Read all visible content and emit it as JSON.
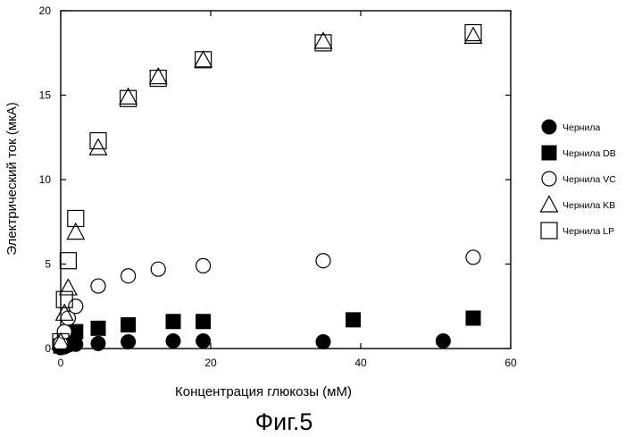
{
  "chart_data": {
    "type": "scatter",
    "title": "",
    "xlabel": "Концентрация глюкозы (мМ)",
    "ylabel": "Электрический ток (мкА)",
    "xlim": [
      0,
      60
    ],
    "ylim": [
      0,
      20
    ],
    "xticks": [
      0,
      20,
      40,
      60
    ],
    "yticks": [
      0,
      5,
      10,
      15,
      20
    ],
    "grid": false,
    "legend_position": "right",
    "series": [
      {
        "name": "Чернила",
        "marker": "filled-circle",
        "x": [
          0,
          0.5,
          1,
          2,
          5,
          9,
          15,
          19,
          35,
          51
        ],
        "y": [
          0.05,
          0.1,
          0.2,
          0.25,
          0.3,
          0.4,
          0.45,
          0.45,
          0.4,
          0.45
        ]
      },
      {
        "name": "Чернила DB",
        "marker": "filled-square",
        "x": [
          0,
          0.5,
          1,
          2,
          5,
          9,
          15,
          19,
          39,
          55
        ],
        "y": [
          0.15,
          0.5,
          0.8,
          1.0,
          1.2,
          1.4,
          1.6,
          1.6,
          1.7,
          1.8
        ]
      },
      {
        "name": "Чернила VC",
        "marker": "open-circle",
        "x": [
          0,
          0.5,
          1,
          2,
          5,
          9,
          13,
          19,
          35,
          55
        ],
        "y": [
          0.3,
          1.0,
          1.8,
          2.5,
          3.7,
          4.3,
          4.7,
          4.9,
          5.2,
          5.4
        ]
      },
      {
        "name": "Чернила KB",
        "marker": "open-triangle",
        "x": [
          0,
          0.5,
          1,
          2,
          5,
          9,
          13,
          19,
          35,
          55
        ],
        "y": [
          0.4,
          2.1,
          3.6,
          6.9,
          11.9,
          14.9,
          16.1,
          17.1,
          18.2,
          18.5
        ]
      },
      {
        "name": "Чернила LP",
        "marker": "open-square",
        "x": [
          0,
          0.5,
          1,
          2,
          5,
          9,
          13,
          19,
          35,
          55
        ],
        "y": [
          0.4,
          2.9,
          5.2,
          7.7,
          12.3,
          14.8,
          16.0,
          17.1,
          18.1,
          18.7
        ]
      }
    ]
  },
  "caption": "Фиг.5"
}
